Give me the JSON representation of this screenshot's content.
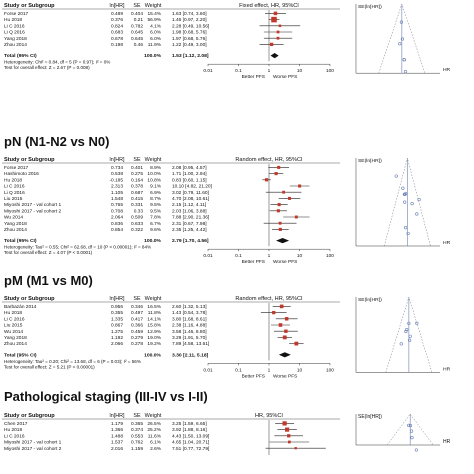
{
  "colors": {
    "square": "#c0392b",
    "diamond": "#111111",
    "line": "#222222",
    "dot": "#6b7fb3",
    "header_rule": "#555555"
  },
  "columns": {
    "study": "Study or Subgroup",
    "lnhr": "ln[HR]",
    "se": "SE",
    "weight": "Weight"
  },
  "total_label": "Total (95% CI)",
  "funnel_ylabel": "SE(ln[HR])",
  "funnel_xlabel": "HR",
  "chart_data": [
    {
      "type": "forest",
      "title": "",
      "effect_header": "Fixed effect, HR, 95%CI",
      "studies": [
        {
          "name": "Forse 2017",
          "lnhr": "0.489",
          "se": "0.404",
          "weight": "15.4%",
          "ci_text": "1.63 [0.74, 3.60]",
          "hr": 1.63,
          "lo": 0.74,
          "hi": 3.6,
          "w": 15.4
        },
        {
          "name": "Hu 2018",
          "lnhr": "0.376",
          "se": "0.21",
          "weight": "56.9%",
          "ci_text": "1.46 [0.97, 2.20]",
          "hr": 1.46,
          "lo": 0.97,
          "hi": 2.2,
          "w": 56.9
        },
        {
          "name": "Li C 2016",
          "lnhr": "0.824",
          "se": "0.782",
          "weight": "4.1%",
          "ci_text": "2.28 [0.49, 10.56]",
          "hr": 2.28,
          "lo": 0.49,
          "hi": 10.56,
          "w": 4.1
        },
        {
          "name": "Li Q 2016",
          "lnhr": "0.683",
          "se": "0.645",
          "weight": "6.0%",
          "ci_text": "1.98 [0.68, 5.76]",
          "hr": 1.98,
          "lo": 0.68,
          "hi": 5.76,
          "w": 6.0
        },
        {
          "name": "Yang 2018",
          "lnhr": "0.678",
          "se": "0.645",
          "weight": "6.0%",
          "ci_text": "1.97 [0.68, 5.76]",
          "hr": 1.97,
          "lo": 0.68,
          "hi": 5.76,
          "w": 6.0
        },
        {
          "name": "Zhou 2014",
          "lnhr": "0.198",
          "se": "0.46",
          "weight": "11.9%",
          "ci_text": "1.22 [0.49, 3.00]",
          "hr": 1.22,
          "lo": 0.49,
          "hi": 3.0,
          "w": 11.9
        }
      ],
      "total": {
        "weight": "100.0%",
        "ci_text": "1.53 [1.12, 2.08]",
        "hr": 1.53,
        "lo": 1.12,
        "hi": 2.08
      },
      "heterogeneity": "Heterogeneity: Chi² = 0.84, df = 5 (P = 0.97); I² = 0%",
      "overall_test": "Test for overall effect: Z = 2.67 (P = 0.008)",
      "axis_ticks": [
        "0.01",
        "0.1",
        "1",
        "10",
        "100"
      ],
      "favours_left": "Better PFS",
      "favours_right": "Worse PFS",
      "funnel": {
        "ymax_label": "0",
        "points": [
          [
            1.63,
            0.404
          ],
          [
            1.46,
            0.21
          ],
          [
            2.28,
            0.782
          ],
          [
            1.98,
            0.645
          ],
          [
            1.97,
            0.645
          ],
          [
            1.22,
            0.46
          ]
        ],
        "pooled": 1.53,
        "se_max": 0.8
      }
    },
    {
      "type": "forest",
      "title": "pN (N1-N2 vs N0)",
      "effect_header": "Random effect, HR, 95%CI",
      "studies": [
        {
          "name": "Forse 2017",
          "lnhr": "0.734",
          "se": "0.401",
          "weight": "8.9%",
          "ci_text": "2.08 [0.95, 4.57]",
          "hr": 2.08,
          "lo": 0.95,
          "hi": 4.57,
          "w": 8.9
        },
        {
          "name": "Hashimoto 2016",
          "lnhr": "0.538",
          "se": "0.275",
          "weight": "10.0%",
          "ci_text": "1.71 [1.00, 2.94]",
          "hr": 1.71,
          "lo": 1.0,
          "hi": 2.94,
          "w": 10.0
        },
        {
          "name": "Hu 2018",
          "lnhr": "-0.185",
          "se": "0.164",
          "weight": "10.8%",
          "ci_text": "0.83 [0.60, 1.15]",
          "hr": 0.83,
          "lo": 0.6,
          "hi": 1.15,
          "w": 10.8
        },
        {
          "name": "Li C 2016",
          "lnhr": "2.313",
          "se": "0.378",
          "weight": "9.1%",
          "ci_text": "10.10 [4.82, 21.20]",
          "hr": 10.1,
          "lo": 4.82,
          "hi": 21.2,
          "w": 9.1
        },
        {
          "name": "Li Q 2016",
          "lnhr": "1.105",
          "se": "0.687",
          "weight": "6.9%",
          "ci_text": "3.02 [0.79, 11.60]",
          "hr": 3.02,
          "lo": 0.79,
          "hi": 11.6,
          "w": 6.9
        },
        {
          "name": "Liu 2015",
          "lnhr": "1.548",
          "se": "0.415",
          "weight": "8.7%",
          "ci_text": "4.70 [2.08, 10.61]",
          "hr": 4.7,
          "lo": 2.08,
          "hi": 10.61,
          "w": 8.7
        },
        {
          "name": "Miyoshi 2017 - val cohort 1",
          "lnhr": "0.765",
          "se": "0.331",
          "weight": "9.5%",
          "ci_text": "2.15 [1.12, 4.11]",
          "hr": 2.15,
          "lo": 1.12,
          "hi": 4.11,
          "w": 9.5
        },
        {
          "name": "Miyoshi 2017 - val cohort 2",
          "lnhr": "0.708",
          "se": "0.33",
          "weight": "9.5%",
          "ci_text": "2.03 [1.06, 3.88]",
          "hr": 2.03,
          "lo": 1.06,
          "hi": 3.88,
          "w": 9.5
        },
        {
          "name": "Wu 2014",
          "lnhr": "2.064",
          "se": "0.509",
          "weight": "7.8%",
          "ci_text": "7.88 [2.90, 21.36]",
          "hr": 7.88,
          "lo": 2.9,
          "hi": 21.36,
          "w": 7.8
        },
        {
          "name": "Yang 2018",
          "lnhr": "0.836",
          "se": "0.633",
          "weight": "6.7%",
          "ci_text": "2.31 [0.67, 7.98]",
          "hr": 2.31,
          "lo": 0.67,
          "hi": 7.98,
          "w": 6.7
        },
        {
          "name": "Zhou 2014",
          "lnhr": "0.854",
          "se": "0.322",
          "weight": "9.6%",
          "ci_text": "2.35 [1.25, 4.42]",
          "hr": 2.35,
          "lo": 1.25,
          "hi": 4.42,
          "w": 9.6
        }
      ],
      "total": {
        "weight": "100.0%",
        "ci_text": "2.79 [1.70, 4.56]",
        "hr": 2.79,
        "lo": 1.7,
        "hi": 4.56
      },
      "heterogeneity": "Heterogeneity: Tau² = 0.55; Chi² = 62.68, df = 10 (P < 0.00001); I² = 84%",
      "overall_test": "Test for overall effect: Z = 4.07 (P < 0.0001)",
      "axis_ticks": [
        "0.01",
        "0.1",
        "1",
        "10",
        "100"
      ],
      "favours_left": "Better PFS",
      "favours_right": "Worse PFS",
      "funnel": {
        "ymax_label": "0",
        "points": [
          [
            2.08,
            0.401
          ],
          [
            1.71,
            0.275
          ],
          [
            0.83,
            0.164
          ],
          [
            10.1,
            0.378
          ],
          [
            3.02,
            0.687
          ],
          [
            4.7,
            0.415
          ],
          [
            2.15,
            0.331
          ],
          [
            2.03,
            0.33
          ],
          [
            7.88,
            0.509
          ],
          [
            2.31,
            0.633
          ],
          [
            2.35,
            0.322
          ]
        ],
        "pooled": 2.79,
        "se_max": 0.8
      }
    },
    {
      "type": "forest",
      "title": "pM (M1 vs M0)",
      "effect_header": "Random effect, HR, 95%CI",
      "studies": [
        {
          "name": "Barbazán 2014",
          "lnhr": "0.956",
          "se": "0.346",
          "weight": "16.5%",
          "ci_text": "2.60 [1.32, 5.13]",
          "hr": 2.6,
          "lo": 1.32,
          "hi": 5.13,
          "w": 16.5
        },
        {
          "name": "Hu 2018",
          "lnhr": "0.355",
          "se": "0.497",
          "weight": "11.8%",
          "ci_text": "1.43 [0.54, 3.78]",
          "hr": 1.43,
          "lo": 0.54,
          "hi": 3.78,
          "w": 11.8
        },
        {
          "name": "Li C 2016",
          "lnhr": "1.335",
          "se": "0.417",
          "weight": "14.1%",
          "ci_text": "3.80 [1.68, 8.61]",
          "hr": 3.8,
          "lo": 1.68,
          "hi": 8.61,
          "w": 14.1
        },
        {
          "name": "Liu 2015",
          "lnhr": "0.867",
          "se": "0.366",
          "weight": "15.8%",
          "ci_text": "2.38 [1.16, 4.88]",
          "hr": 2.38,
          "lo": 1.16,
          "hi": 4.88,
          "w": 15.8
        },
        {
          "name": "Wu 2014",
          "lnhr": "1.275",
          "se": "0.459",
          "weight": "12.9%",
          "ci_text": "3.58 [1.46, 8.80]",
          "hr": 3.58,
          "lo": 1.46,
          "hi": 8.8,
          "w": 12.9
        },
        {
          "name": "Yang 2018",
          "lnhr": "1.192",
          "se": "0.279",
          "weight": "19.0%",
          "ci_text": "3.29 [1.91, 5.70]",
          "hr": 3.29,
          "lo": 1.91,
          "hi": 5.7,
          "w": 19.0
        },
        {
          "name": "Zhou 2014",
          "lnhr": "2.066",
          "se": "0.278",
          "weight": "19.2%",
          "ci_text": "7.89 [4.58, 13.61]",
          "hr": 7.89,
          "lo": 4.58,
          "hi": 13.61,
          "w": 19.2
        }
      ],
      "total": {
        "weight": "100.0%",
        "ci_text": "3.30 [2.11, 5.18]",
        "hr": 3.3,
        "lo": 2.11,
        "hi": 5.18
      },
      "heterogeneity": "Heterogeneity: Tau² = 0.20; Chi² = 13.68, df = 6 (P = 0.03); I² = 56%",
      "overall_test": "Test for overall effect: Z = 5.21 (P < 0.00001)",
      "axis_ticks": [
        "0.01",
        "0.1",
        "1",
        "10",
        "100"
      ],
      "favours_left": "Better PFS",
      "favours_right": "Worse PFS",
      "funnel": {
        "ymax_label": "0",
        "points": [
          [
            2.6,
            0.346
          ],
          [
            1.43,
            0.497
          ],
          [
            3.8,
            0.417
          ],
          [
            2.38,
            0.366
          ],
          [
            3.58,
            0.459
          ],
          [
            3.29,
            0.279
          ],
          [
            7.89,
            0.278
          ]
        ],
        "pooled": 3.3,
        "se_max": 0.8
      }
    },
    {
      "type": "forest",
      "title": "Pathological staging (III-IV vs I-II)",
      "effect_header": "HR, 95%CI",
      "studies": [
        {
          "name": "Chen 2017",
          "lnhr": "1.179",
          "se": "0.365",
          "weight": "26.5%",
          "ci_text": "3.25 [1.59, 6.65]",
          "hr": 3.25,
          "lo": 1.59,
          "hi": 6.65,
          "w": 26.5
        },
        {
          "name": "Hu 2018",
          "lnhr": "1.366",
          "se": "0.374",
          "weight": "25.2%",
          "ci_text": "3.92 [1.88, 8.16]",
          "hr": 3.92,
          "lo": 1.88,
          "hi": 8.16,
          "w": 25.2
        },
        {
          "name": "Li C 2016",
          "lnhr": "1.488",
          "se": "0.553",
          "weight": "11.6%",
          "ci_text": "4.43 [1.50, 13.09]",
          "hr": 4.43,
          "lo": 1.5,
          "hi": 13.09,
          "w": 11.6
        },
        {
          "name": "Miyoshi 2017 - val cohort 1",
          "lnhr": "1.537",
          "se": "0.762",
          "weight": "6.1%",
          "ci_text": "4.65 [1.04, 20.71]",
          "hr": 4.65,
          "lo": 1.04,
          "hi": 20.71,
          "w": 6.1
        },
        {
          "name": "Miyoshi 2017 - val cohort 2",
          "lnhr": "2.016",
          "se": "1.159",
          "weight": "2.6%",
          "ci_text": "7.51 [0.77, 72.79]",
          "hr": 7.51,
          "lo": 0.77,
          "hi": 72.79,
          "w": 2.6
        }
      ],
      "total": null,
      "heterogeneity": "",
      "overall_test": "",
      "axis_ticks": [],
      "favours_left": "",
      "favours_right": "",
      "funnel": {
        "ymax_label": "0",
        "points": [
          [
            3.25,
            0.365
          ],
          [
            3.92,
            0.374
          ],
          [
            4.43,
            0.553
          ],
          [
            4.65,
            0.762
          ],
          [
            7.51,
            1.159
          ]
        ],
        "pooled": 3.8,
        "se_max": 1.0
      }
    }
  ]
}
